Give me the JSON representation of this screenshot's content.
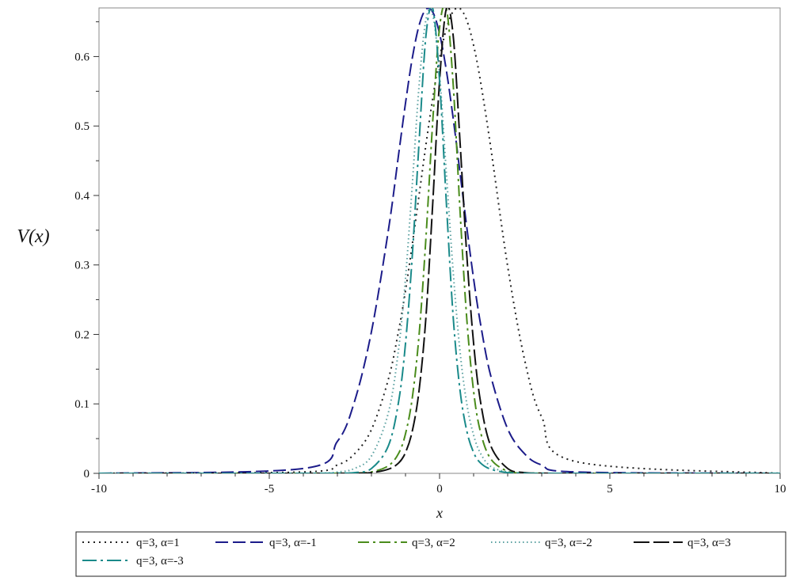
{
  "chart_data": {
    "type": "line",
    "title": "",
    "xlabel": "x",
    "ylabel": "V(x)",
    "xlim": [
      -10,
      10
    ],
    "ylim": [
      0,
      0.67
    ],
    "x_ticks": [
      -10,
      -5,
      0,
      5,
      10
    ],
    "y_ticks": [
      0,
      0.1,
      0.2,
      0.3,
      0.4,
      0.5,
      0.6
    ],
    "x_tick_labels": [
      "-10",
      "-5",
      "0",
      "5",
      "10"
    ],
    "y_tick_labels": [
      "0",
      "0.1",
      "0.2",
      "0.3",
      "0.4",
      "0.5",
      "0.6"
    ],
    "grid": false,
    "legend_position": "bottom",
    "x": [
      -10,
      -4,
      -3,
      -2.5,
      -2,
      -1.5,
      -1.2,
      -1,
      -0.8,
      -0.6,
      -0.4,
      -0.2,
      0,
      0.2,
      0.4,
      0.6,
      0.8,
      1,
      1.2,
      1.5,
      2,
      2.5,
      3,
      4,
      10
    ],
    "series": [
      {
        "name": "q=3, α=1",
        "color": "#222222",
        "dash": "dotted",
        "y": [
          0,
          0.002,
          0.012,
          0.028,
          0.063,
          0.136,
          0.206,
          0.263,
          0.33,
          0.401,
          0.473,
          0.54,
          0.598,
          0.64,
          0.665,
          0.669,
          0.652,
          0.616,
          0.565,
          0.47,
          0.298,
          0.163,
          0.081,
          0.017,
          0
        ]
      },
      {
        "name": "q=3, α=-1",
        "color": "#1c1c8a",
        "dash": "dashed",
        "y": [
          0,
          0.007,
          0.046,
          0.103,
          0.204,
          0.351,
          0.46,
          0.533,
          0.598,
          0.645,
          0.668,
          0.664,
          0.633,
          0.58,
          0.511,
          0.433,
          0.354,
          0.28,
          0.216,
          0.141,
          0.064,
          0.028,
          0.012,
          0.002,
          0
        ]
      },
      {
        "name": "q=3, α=2",
        "color": "#4a8c1c",
        "dash": "dashdot",
        "y": [
          0,
          0,
          0.0001,
          0.0005,
          0.002,
          0.011,
          0.029,
          0.057,
          0.109,
          0.2,
          0.339,
          0.507,
          0.642,
          0.669,
          0.56,
          0.379,
          0.222,
          0.118,
          0.06,
          0.021,
          0.003,
          0.0005,
          0.0001,
          0,
          0
        ]
      },
      {
        "name": "q=3, α=-2",
        "color": "#5aa0a0",
        "dash": "finedot",
        "y": [
          0,
          0.0001,
          0.002,
          0.007,
          0.025,
          0.088,
          0.18,
          0.281,
          0.416,
          0.559,
          0.653,
          0.66,
          0.574,
          0.432,
          0.29,
          0.176,
          0.1,
          0.055,
          0.029,
          0.01,
          0.002,
          0.0003,
          0,
          0,
          0
        ]
      },
      {
        "name": "q=3, α=3",
        "color": "#111111",
        "dash": "longdash",
        "y": [
          0,
          0,
          0,
          0.0002,
          0.001,
          0.006,
          0.015,
          0.03,
          0.061,
          0.12,
          0.225,
          0.389,
          0.565,
          0.669,
          0.63,
          0.478,
          0.314,
          0.187,
          0.104,
          0.04,
          0.007,
          0.001,
          0.0002,
          0,
          0
        ]
      },
      {
        "name": "q=3, α=-3",
        "color": "#1a8a8a",
        "dash": "longdashdot",
        "y": [
          0,
          0,
          0.0002,
          0.001,
          0.007,
          0.04,
          0.104,
          0.187,
          0.314,
          0.478,
          0.63,
          0.669,
          0.565,
          0.389,
          0.225,
          0.12,
          0.061,
          0.03,
          0.015,
          0.006,
          0.001,
          0.0002,
          0,
          0,
          0
        ]
      }
    ]
  }
}
